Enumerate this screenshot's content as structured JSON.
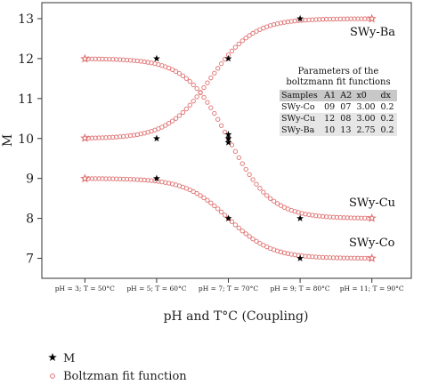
{
  "colors": {
    "fit_marker": "#e07070",
    "measured_marker": "#000000",
    "frame": "#333333"
  },
  "chart_data": {
    "type": "scatter",
    "title": "",
    "xlabel": "pH and T°C (Coupling)",
    "ylabel": "M",
    "x_tick_labels": [
      "pH = 3; T = 50°C",
      "pH = 5; T = 60°C",
      "pH = 7; T = 70°C",
      "pH = 9; T = 80°C",
      "pH = 11; T = 90°C"
    ],
    "xlim": [
      -0.6,
      4.55
    ],
    "ylim": [
      6.5,
      13.4
    ],
    "y_ticks": [
      7,
      8,
      9,
      10,
      11,
      12,
      13
    ],
    "grid": false,
    "legend_position": "bottom-left, below plot",
    "measured": {
      "name": "M",
      "points": [
        {
          "x": 1,
          "y": 12
        },
        {
          "x": 1,
          "y": 10
        },
        {
          "x": 1,
          "y": 9
        },
        {
          "x": 2,
          "y": 12
        },
        {
          "x": 2,
          "y": 10.1
        },
        {
          "x": 2,
          "y": 10
        },
        {
          "x": 2,
          "y": 9.9
        },
        {
          "x": 2,
          "y": 8
        },
        {
          "x": 3,
          "y": 13
        },
        {
          "x": 3,
          "y": 8
        },
        {
          "x": 3,
          "y": 7
        }
      ]
    },
    "fit": {
      "name": "Boltzman fit function",
      "x_range": [
        0,
        4
      ],
      "curves": [
        {
          "label": "SWy-Co",
          "A1": 9,
          "A2": 7,
          "x0": 3.0,
          "dx": 0.2
        },
        {
          "label": "SWy-Cu",
          "A1": 12,
          "A2": 8,
          "x0": 3.0,
          "dx": 0.2
        },
        {
          "label": "SWy-Ba",
          "A1": 10,
          "A2": 13,
          "x0": 2.75,
          "dx": 0.2
        }
      ]
    },
    "series_labels": [
      "SWy-Ba",
      "SWy-Cu",
      "SWy-Co"
    ],
    "parameters_table": {
      "title": "Parameters of the boltzmann fit functions",
      "columns": [
        "Samples",
        "A1",
        "A2",
        "x0",
        "dx"
      ],
      "rows": [
        [
          "SWy-Co",
          "09",
          "07",
          "3.00",
          "0.2"
        ],
        [
          "SWy-Cu",
          "12",
          "08",
          "3.00",
          "0.2"
        ],
        [
          "SWy-Ba",
          "10",
          "13",
          "2.75",
          "0.2"
        ]
      ]
    }
  },
  "legend": {
    "measured_label": "M",
    "fit_label": "Boltzman fit function"
  }
}
